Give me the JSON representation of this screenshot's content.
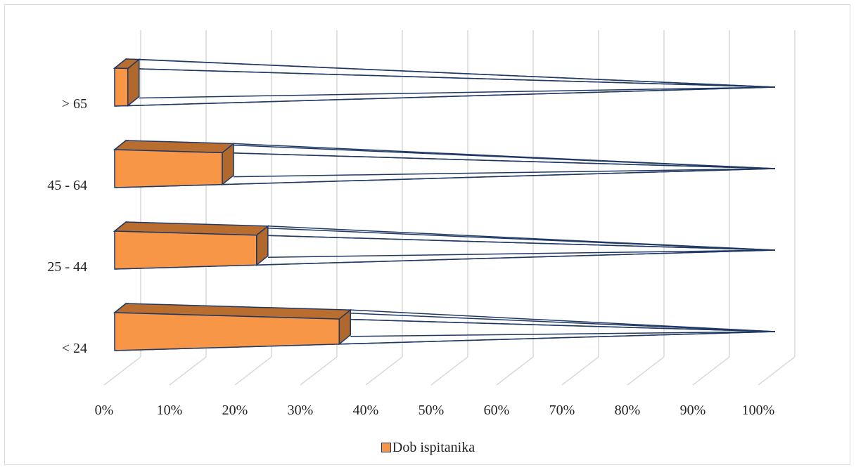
{
  "chart_data": {
    "type": "bar",
    "orientation": "horizontal-3d-pyramid",
    "categories": [
      "< 24",
      "25 - 44",
      "45 - 64",
      "> 65"
    ],
    "series": [
      {
        "name": "Dob ispitanika",
        "values": [
          0.34,
          0.215,
          0.163,
          0.02
        ]
      }
    ],
    "x_ticks": [
      "0%",
      "10%",
      "20%",
      "30%",
      "40%",
      "50%",
      "60%",
      "70%",
      "80%",
      "90%",
      "100%"
    ],
    "xlim": [
      0,
      1
    ],
    "grid": true,
    "legend_position": "bottom",
    "colors": {
      "front": "#f79646",
      "side": "#b0682d",
      "top": "#b96d2f",
      "outline": "#1f3864",
      "grid": "#d9d9d9"
    }
  },
  "legend": {
    "label": "Dob ispitanika"
  }
}
